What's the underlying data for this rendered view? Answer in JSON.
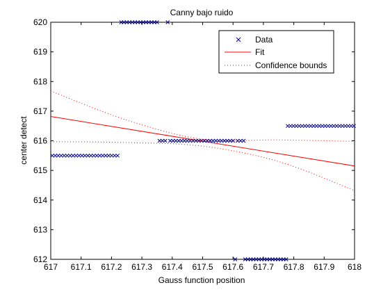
{
  "chart_data": {
    "type": "scatter",
    "title": "Canny bajo ruido",
    "xlabel": "Gauss function position",
    "ylabel": "center detect",
    "xlim": [
      617,
      618
    ],
    "ylim": [
      612,
      620
    ],
    "xticks": [
      "617",
      "617.1",
      "617.2",
      "617.3",
      "617.4",
      "617.5",
      "617.6",
      "617.7",
      "617.8",
      "617.9",
      "618"
    ],
    "yticks": [
      "612",
      "613",
      "614",
      "615",
      "616",
      "617",
      "618",
      "619",
      "620"
    ],
    "grid": false,
    "legend_position": "top-right",
    "series": [
      {
        "name": "Data",
        "marker": "x",
        "color": "#00008b",
        "groups": [
          {
            "x_start": 617.005,
            "x_end": 617.22,
            "count": 23,
            "y": 615.5
          },
          {
            "x_start": 617.232,
            "x_end": 617.35,
            "count": 14,
            "y": 620
          },
          {
            "x_start": 617.385,
            "x_end": 617.385,
            "count": 1,
            "y": 620
          },
          {
            "x_start": 617.358,
            "x_end": 617.377,
            "count": 3,
            "y": 616
          },
          {
            "x_start": 617.393,
            "x_end": 617.6,
            "count": 23,
            "y": 616
          },
          {
            "x_start": 617.615,
            "x_end": 617.635,
            "count": 3,
            "y": 616
          },
          {
            "x_start": 617.607,
            "x_end": 617.607,
            "count": 1,
            "y": 612
          },
          {
            "x_start": 617.64,
            "x_end": 617.775,
            "count": 16,
            "y": 612
          },
          {
            "x_start": 617.78,
            "x_end": 617.998,
            "count": 24,
            "y": 616.5
          }
        ]
      },
      {
        "name": "Fit",
        "style": "solid",
        "color": "#ff0000",
        "x": [
          617,
          618
        ],
        "y": [
          616.82,
          615.15
        ]
      },
      {
        "name": "Confidence bounds",
        "style": "dotted",
        "color": "#ff0000",
        "upper": {
          "x": [
            617,
            617.25,
            617.5,
            617.75,
            618
          ],
          "y": [
            617.68,
            616.7,
            616.05,
            616.03,
            615.98
          ]
        },
        "lower": {
          "x": [
            617,
            617.25,
            617.5,
            617.75,
            618
          ],
          "y": [
            615.97,
            615.94,
            615.82,
            615.3,
            614.32
          ]
        }
      }
    ]
  }
}
